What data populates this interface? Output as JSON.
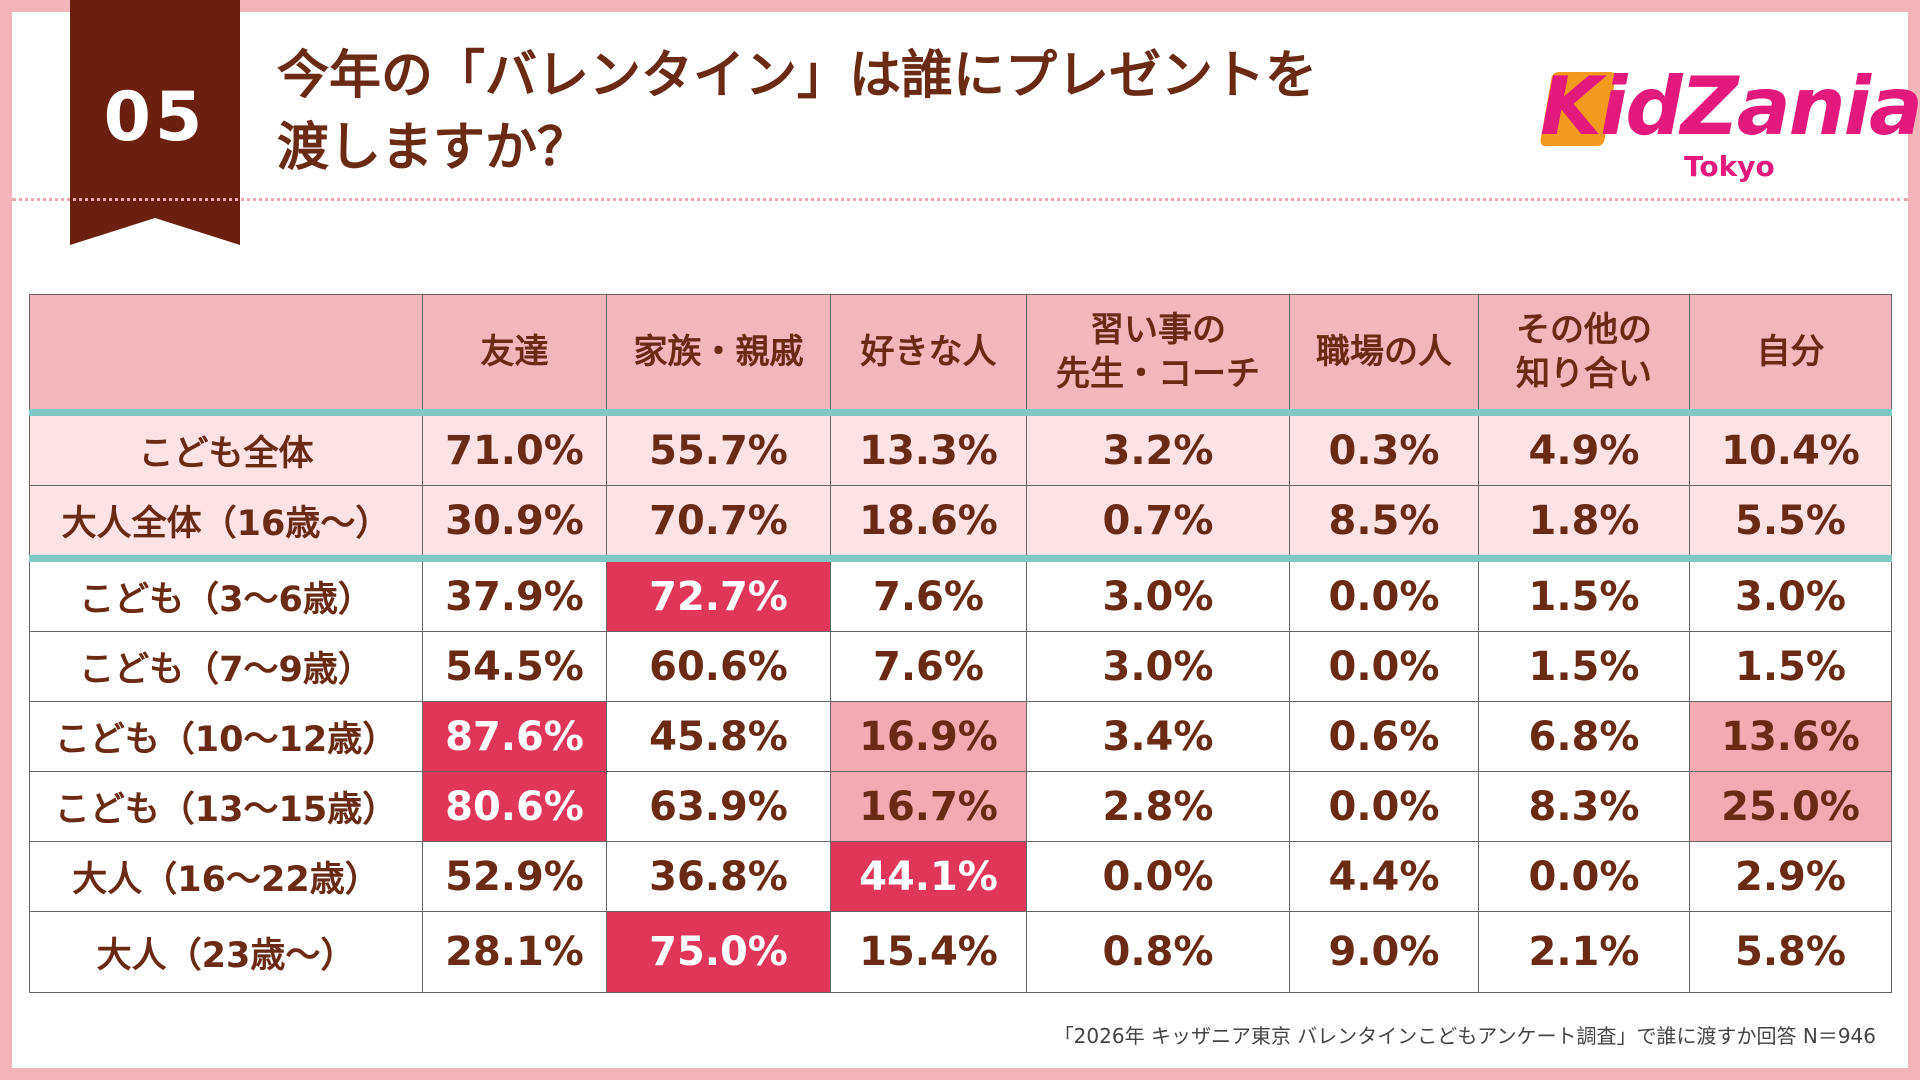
{
  "header": {
    "number": "05",
    "title": "今年の「バレンタイン」は誰にプレゼントを\n渡しますか？"
  },
  "logo": {
    "name": "KidZania",
    "sub": "Tokyo"
  },
  "table": {
    "columns": [
      "友達",
      "家族・親戚",
      "好きな人",
      "習い事の\n先生・コーチ",
      "職場の人",
      "その他の\n知り合い",
      "自分"
    ],
    "rows": [
      {
        "label": "こども全体",
        "values": [
          "71.0%",
          "55.7%",
          "13.3%",
          "3.2%",
          "0.3%",
          "4.9%",
          "10.4%"
        ]
      },
      {
        "label": "大人全体（16歳～）",
        "values": [
          "30.9%",
          "70.7%",
          "18.6%",
          "0.7%",
          "8.5%",
          "1.8%",
          "5.5%"
        ]
      },
      {
        "label": "こども（3～6歳）",
        "values": [
          "37.9%",
          "72.7%",
          "7.6%",
          "3.0%",
          "0.0%",
          "1.5%",
          "3.0%"
        ]
      },
      {
        "label": "こども（7～9歳）",
        "values": [
          "54.5%",
          "60.6%",
          "7.6%",
          "3.0%",
          "0.0%",
          "1.5%",
          "1.5%"
        ]
      },
      {
        "label": "こども（10～12歳）",
        "values": [
          "87.6%",
          "45.8%",
          "16.9%",
          "3.4%",
          "0.6%",
          "6.8%",
          "13.6%"
        ]
      },
      {
        "label": "こども（13～15歳）",
        "values": [
          "80.6%",
          "63.9%",
          "16.7%",
          "2.8%",
          "0.0%",
          "8.3%",
          "25.0%"
        ]
      },
      {
        "label": "大人（16～22歳）",
        "values": [
          "52.9%",
          "36.8%",
          "44.1%",
          "0.0%",
          "4.4%",
          "0.0%",
          "2.9%"
        ]
      },
      {
        "label": "大人（23歳～）",
        "values": [
          "28.1%",
          "75.0%",
          "15.4%",
          "0.8%",
          "9.0%",
          "2.1%",
          "5.8%"
        ]
      }
    ]
  },
  "footnote": "「2026年 キッザニア東京 バレンタインこどもアンケート調査」で誰に渡すか回答 N＝946"
}
